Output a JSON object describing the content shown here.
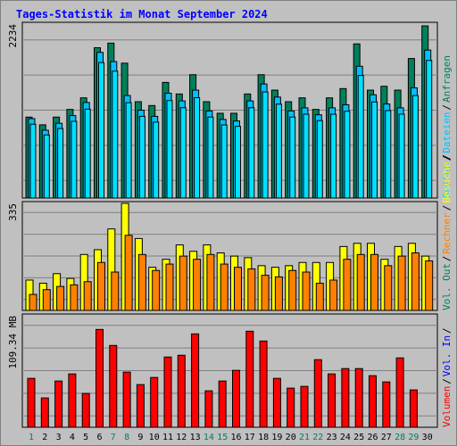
{
  "colors": {
    "background": "#c0c0c0",
    "panel": "#c0c0c0",
    "frame_light": "#ffffff",
    "frame_dark": "#808080",
    "grid": "#808080",
    "title": "#0000ff",
    "anfragen": "#00805c",
    "dateien": "#00c0ff",
    "seiten": "#00e0ff",
    "besuche": "#ffff00",
    "rechner": "#ff8000",
    "volumen": "#ff0000",
    "vol_in": "#0000ff",
    "vol_out": "#00805c",
    "separator": "#000000",
    "day_weekday": "#000000",
    "day_weekend": "#00805c"
  },
  "chart_data": {
    "type": "bar",
    "title": "Tages-Statistik im Monat September 2024",
    "days": [
      "1",
      "2",
      "3",
      "4",
      "5",
      "6",
      "7",
      "8",
      "9",
      "10",
      "11",
      "12",
      "13",
      "14",
      "15",
      "16",
      "17",
      "18",
      "19",
      "20",
      "21",
      "22",
      "23",
      "24",
      "25",
      "26",
      "27",
      "28",
      "29",
      "30"
    ],
    "weekend_days": [
      "1",
      "7",
      "8",
      "14",
      "15",
      "21",
      "22",
      "28",
      "29"
    ],
    "panels": [
      {
        "id": "top",
        "max_label": "2234",
        "ylim": [
          0,
          2234
        ],
        "series": [
          {
            "name": "Anfragen",
            "values": [
              1050,
              950,
              1050,
              1150,
              1300,
              1950,
              2010,
              1750,
              1250,
              1200,
              1500,
              1350,
              1600,
              1250,
              1100,
              1100,
              1350,
              1600,
              1400,
              1250,
              1300,
              1150,
              1300,
              1420,
              2000,
              1400,
              1450,
              1400,
              1810,
              2234
            ]
          },
          {
            "name": "Dateien",
            "values": [
              1030,
              880,
              970,
              1070,
              1240,
              1890,
              1770,
              1330,
              1140,
              1060,
              1360,
              1260,
              1400,
              1130,
              1020,
              1000,
              1260,
              1480,
              1310,
              1130,
              1170,
              1080,
              1170,
              1210,
              1710,
              1340,
              1220,
              1170,
              1430,
              1920
            ]
          },
          {
            "name": "Seiten",
            "values": [
              1030,
              880,
              970,
              1070,
              1240,
              1890,
              1770,
              1330,
              1140,
              1060,
              1360,
              1260,
              1400,
              1130,
              1020,
              1000,
              1260,
              1480,
              1310,
              1130,
              1170,
              1080,
              1170,
              1210,
              1710,
              1340,
              1220,
              1170,
              1430,
              1920
            ]
          }
        ]
      },
      {
        "id": "middle",
        "max_label": "335",
        "ylim": [
          0,
          335
        ],
        "series": [
          {
            "name": "Besuche",
            "values": [
              95,
              85,
              115,
              100,
              175,
              190,
              255,
              335,
              225,
              135,
              160,
              205,
              185,
              205,
              180,
              170,
              165,
              140,
              135,
              140,
              150,
              150,
              150,
              200,
              210,
              210,
              160,
              200,
              210,
              170
            ]
          },
          {
            "name": "Rechner",
            "values": [
              50,
              65,
              75,
              80,
              90,
              150,
              120,
              235,
              175,
              125,
              145,
              170,
              160,
              175,
              145,
              135,
              130,
              110,
              105,
              125,
              120,
              85,
              95,
              160,
              175,
              175,
              140,
              170,
              180,
              155
            ]
          }
        ]
      },
      {
        "id": "bottom",
        "max_label": "109.34 MB",
        "ylim": [
          0,
          109.34
        ],
        "series": [
          {
            "name": "Volumen",
            "values": [
              55,
              33,
              52,
              60,
              38,
              110,
              92,
              62,
              48,
              56,
              79,
              81,
              105,
              41,
              52,
              64,
              108,
              97,
              55,
              44,
              46,
              76,
              60,
              66,
              66,
              58,
              51,
              78,
              42,
              0
            ]
          }
        ]
      }
    ],
    "right_legends": [
      {
        "panel": "top",
        "items": [
          "Anfragen",
          "Dateien",
          "Seiten"
        ]
      },
      {
        "panel": "middle",
        "items": [
          "Besuche",
          "Rechner",
          "Vol. Out"
        ]
      },
      {
        "panel": "bottom",
        "items": [
          "Vol. In",
          "Volumen"
        ]
      }
    ],
    "separator": "/"
  }
}
